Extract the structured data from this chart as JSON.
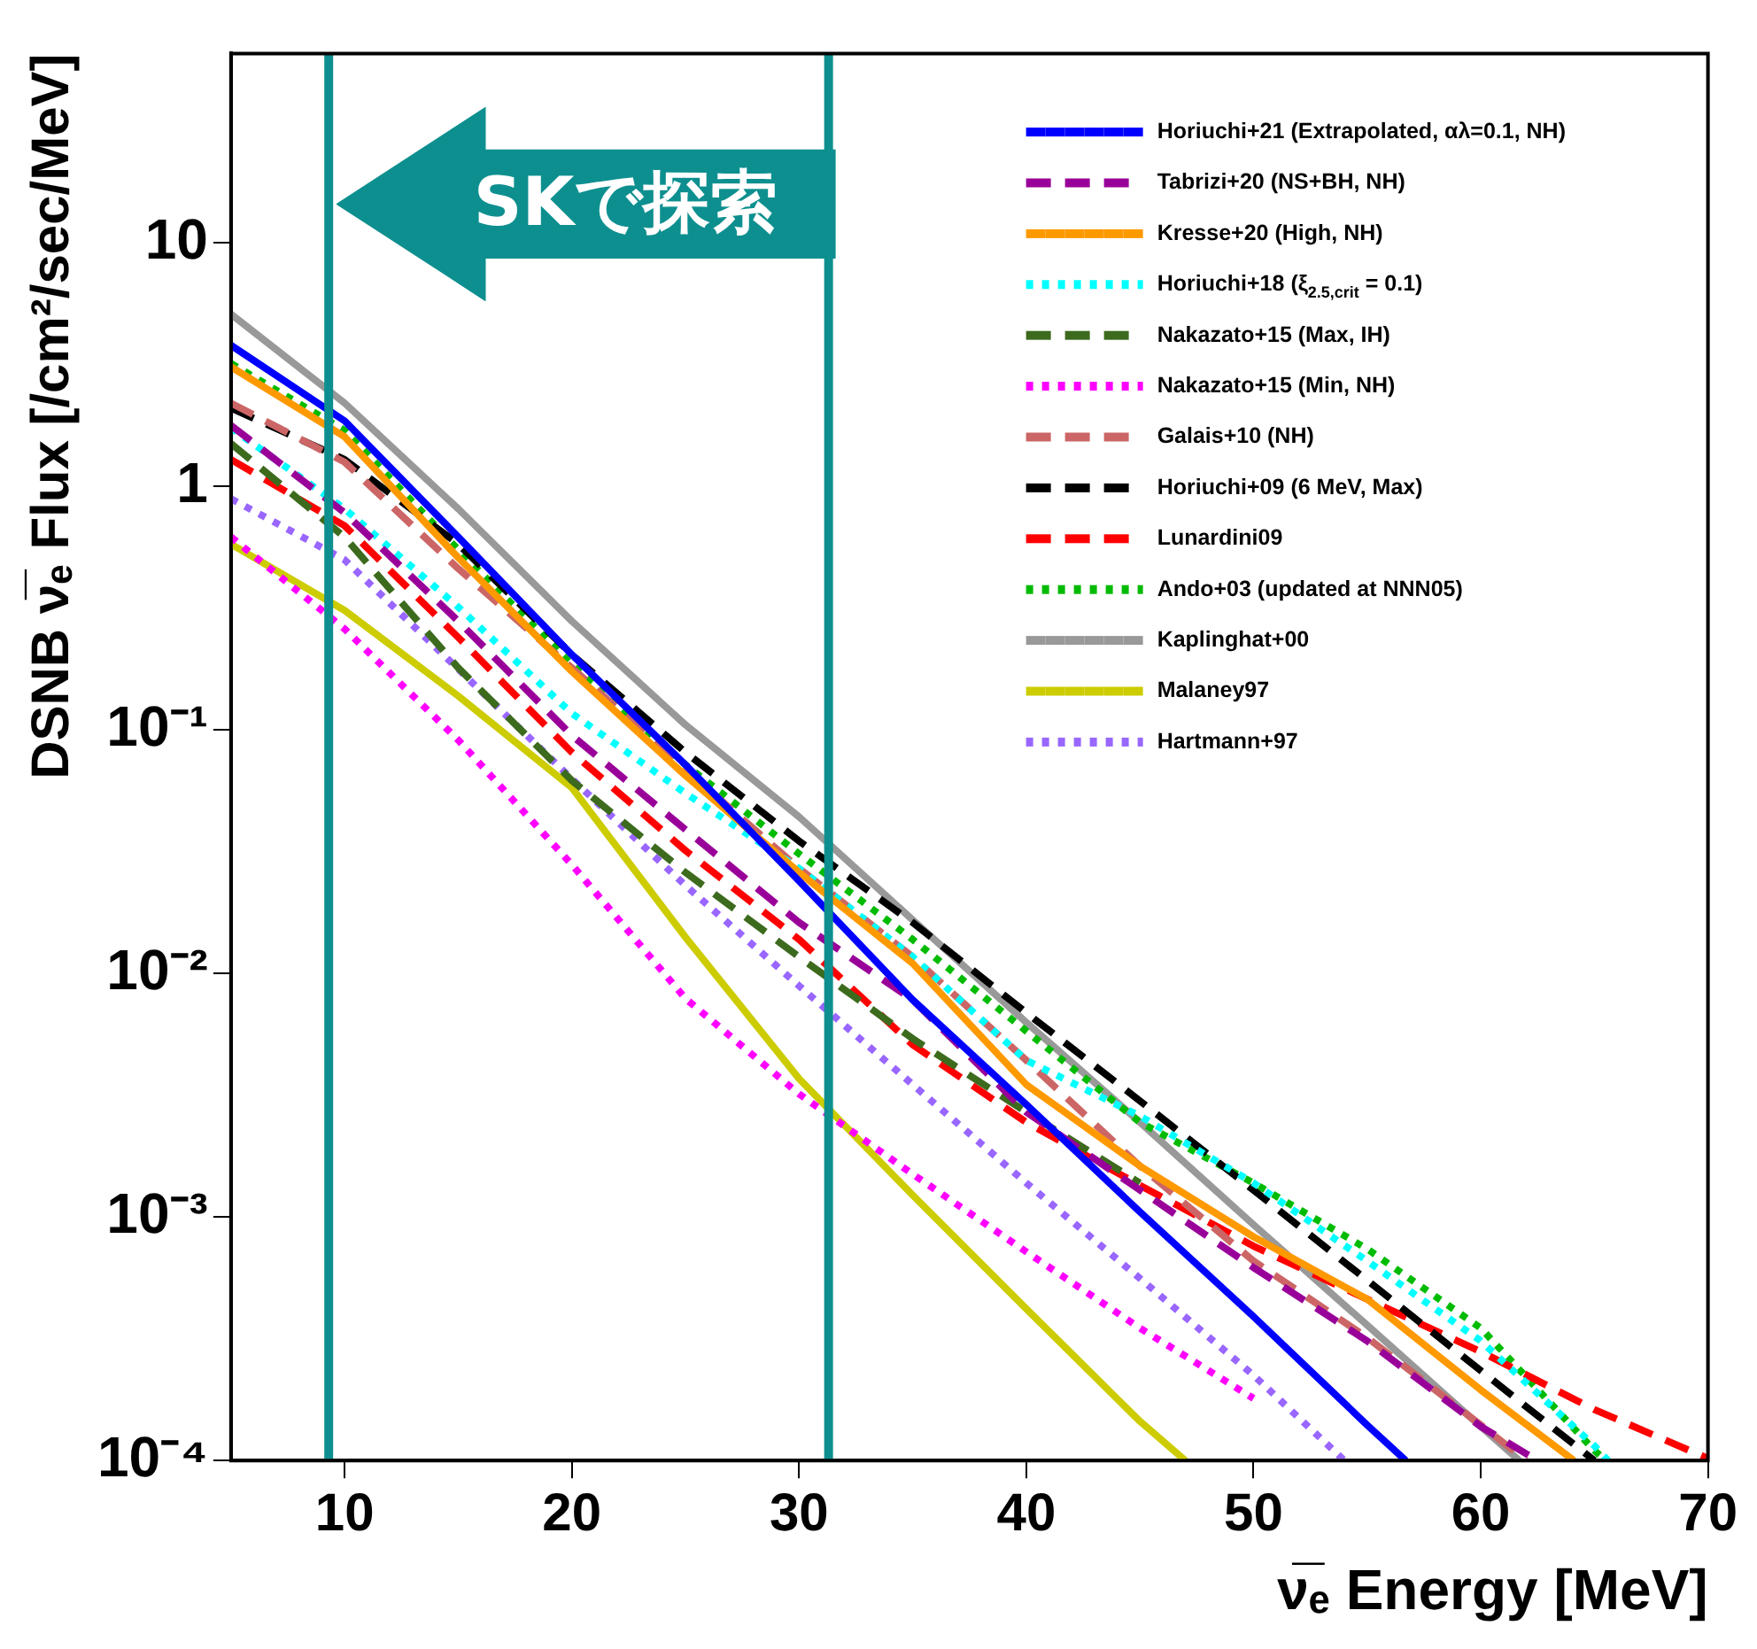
{
  "chart_data": {
    "type": "line",
    "xlabel": "ν̅ₑ Energy [MeV]",
    "ylabel": "DSNB ν̅ₑ Flux [/cm²/sec/MeV]",
    "log": "y",
    "grid": false,
    "legend": "top right",
    "xlim": [
      5,
      70
    ],
    "xticks": [
      10,
      20,
      30,
      40,
      50,
      60,
      70
    ],
    "ylim": [
      0.0001,
      60
    ],
    "yticks": [
      {
        "value": 0.0001,
        "label": "10⁻⁴"
      },
      {
        "value": 0.001,
        "label": "10⁻³"
      },
      {
        "value": 0.01,
        "label": "10⁻²"
      },
      {
        "value": 0.1,
        "label": "10⁻¹"
      },
      1,
      10
    ],
    "annotations": [
      "SKで探索"
    ],
    "ref_lines": [
      {
        "axis": "x",
        "value": 9.3,
        "color": "#0e8f8f"
      },
      {
        "axis": "x",
        "value": 31.3,
        "color": "#0e8f8f"
      }
    ],
    "series": [
      {
        "name": "Horiuchi+21 (Extrapolated, αλ=0.1, NH)",
        "color": "#0000ff",
        "line_style": "solid",
        "x": [
          5,
          10,
          15,
          20,
          25,
          30,
          35,
          40,
          45,
          50,
          55,
          56.7
        ],
        "values": [
          3.8,
          1.86,
          0.62,
          0.204,
          0.072,
          0.024,
          0.0078,
          0.0029,
          0.00105,
          0.00039,
          0.00014,
          0.0001
        ]
      },
      {
        "name": "Tabrizi+20 (NS+BH, NH)",
        "color": "#990099",
        "line_style": "dashed",
        "x": [
          5,
          10,
          15,
          20,
          25,
          30,
          35,
          40,
          45,
          50,
          55,
          60,
          62.5
        ],
        "values": [
          1.78,
          0.78,
          0.28,
          0.095,
          0.039,
          0.0162,
          0.0078,
          0.0027,
          0.00129,
          0.00062,
          0.00031,
          0.000138,
          0.0001
        ]
      },
      {
        "name": "Kresse+20 (High, NH)",
        "color": "#ff9900",
        "line_style": "solid",
        "x": [
          5,
          10,
          15,
          20,
          25,
          30,
          35,
          40,
          45,
          50,
          55,
          60,
          64.1
        ],
        "values": [
          3.1,
          1.6,
          0.51,
          0.174,
          0.065,
          0.026,
          0.011,
          0.0035,
          0.00162,
          0.00083,
          0.00046,
          0.000195,
          0.0001
        ]
      },
      {
        "name": "Horiuchi+18 (ξ$_{2.5,crit}$ = 0.1)",
        "color": "#00ffff",
        "line_style": "dotted",
        "x": [
          5,
          10,
          15,
          20,
          25,
          30,
          35,
          40,
          45,
          50,
          55,
          60,
          65,
          65.6
        ],
        "values": [
          1.74,
          0.81,
          0.32,
          0.117,
          0.055,
          0.027,
          0.0117,
          0.0044,
          0.0026,
          0.00138,
          0.00066,
          0.00031,
          0.000115,
          0.0001
        ]
      },
      {
        "name": "Nakazato+15 (Max, IH)",
        "color": "#3d6b1e",
        "line_style": "dashed",
        "x": [
          5,
          10,
          15,
          20,
          25,
          30,
          35,
          40,
          45
        ],
        "values": [
          1.5,
          0.62,
          0.18,
          0.062,
          0.026,
          0.0117,
          0.0054,
          0.0027,
          0.00138
        ]
      },
      {
        "name": "Nakazato+15 (Min, NH)",
        "color": "#ff00ff",
        "line_style": "dotted",
        "x": [
          5,
          10,
          15,
          20,
          25,
          30,
          35,
          40,
          45,
          50
        ],
        "values": [
          0.62,
          0.26,
          0.091,
          0.028,
          0.0079,
          0.0032,
          0.0015,
          0.00072,
          0.00035,
          0.00018
        ]
      },
      {
        "name": "Galais+10 (NH)",
        "color": "#cc6666",
        "line_style": "dashed",
        "x": [
          5,
          10,
          15,
          20,
          25,
          30,
          35,
          40,
          45,
          50,
          55,
          60,
          62
        ],
        "values": [
          2.2,
          1.26,
          0.46,
          0.18,
          0.069,
          0.027,
          0.0117,
          0.0044,
          0.00162,
          0.00066,
          0.00032,
          0.00014,
          0.0001
        ]
      },
      {
        "name": "Horiuchi+09 (6 MeV, Max)",
        "color": "#000000",
        "line_style": "dashed",
        "x": [
          5,
          10,
          15,
          20,
          25,
          30,
          35,
          40,
          45,
          50,
          55,
          60,
          65
        ],
        "values": [
          2.1,
          1.29,
          0.58,
          0.204,
          0.081,
          0.035,
          0.0162,
          0.0069,
          0.003,
          0.00129,
          0.00055,
          0.000234,
          0.0001
        ]
      },
      {
        "name": "Lunardini09",
        "color": "#ff0000",
        "line_style": "dashed",
        "x": [
          5,
          10,
          15,
          20,
          25,
          30,
          35,
          40,
          45,
          50,
          55,
          60,
          65,
          70
        ],
        "values": [
          1.29,
          0.69,
          0.24,
          0.081,
          0.032,
          0.0138,
          0.0051,
          0.00245,
          0.00135,
          0.00076,
          0.00046,
          0.00028,
          0.000162,
          0.000102
        ]
      },
      {
        "name": "Ando+03 (updated at NNN05)",
        "color": "#00bb00",
        "line_style": "dotted",
        "x": [
          5,
          10,
          15,
          20,
          25,
          30,
          35,
          40,
          45,
          50,
          55,
          60,
          65,
          65.5
        ],
        "values": [
          3.2,
          1.7,
          0.55,
          0.186,
          0.072,
          0.031,
          0.0138,
          0.0058,
          0.00245,
          0.00138,
          0.00074,
          0.00035,
          0.00011,
          0.0001
        ]
      },
      {
        "name": "Kaplinghat+00",
        "color": "#999999",
        "line_style": "solid",
        "x": [
          5,
          10,
          15,
          20,
          25,
          30,
          35,
          40,
          45,
          50,
          55,
          60,
          61.7
        ],
        "values": [
          5.1,
          2.2,
          0.81,
          0.28,
          0.105,
          0.044,
          0.0166,
          0.0063,
          0.00245,
          0.00093,
          0.00036,
          0.000138,
          0.0001
        ]
      },
      {
        "name": "Malaney97",
        "color": "#cccc00",
        "line_style": "solid",
        "x": [
          5,
          10,
          15,
          20,
          25,
          30,
          35,
          40,
          45,
          47
        ],
        "values": [
          0.58,
          0.31,
          0.138,
          0.058,
          0.0141,
          0.0037,
          0.00123,
          0.00042,
          0.000145,
          0.0001
        ]
      },
      {
        "name": "Hartmann+97",
        "color": "#9966ff",
        "line_style": "dotted",
        "x": [
          5,
          10,
          15,
          20,
          25,
          30,
          35,
          40,
          45,
          50,
          54
        ],
        "values": [
          0.89,
          0.5,
          0.178,
          0.063,
          0.023,
          0.0089,
          0.0035,
          0.00138,
          0.00056,
          0.000224,
          0.0001
        ]
      }
    ]
  }
}
